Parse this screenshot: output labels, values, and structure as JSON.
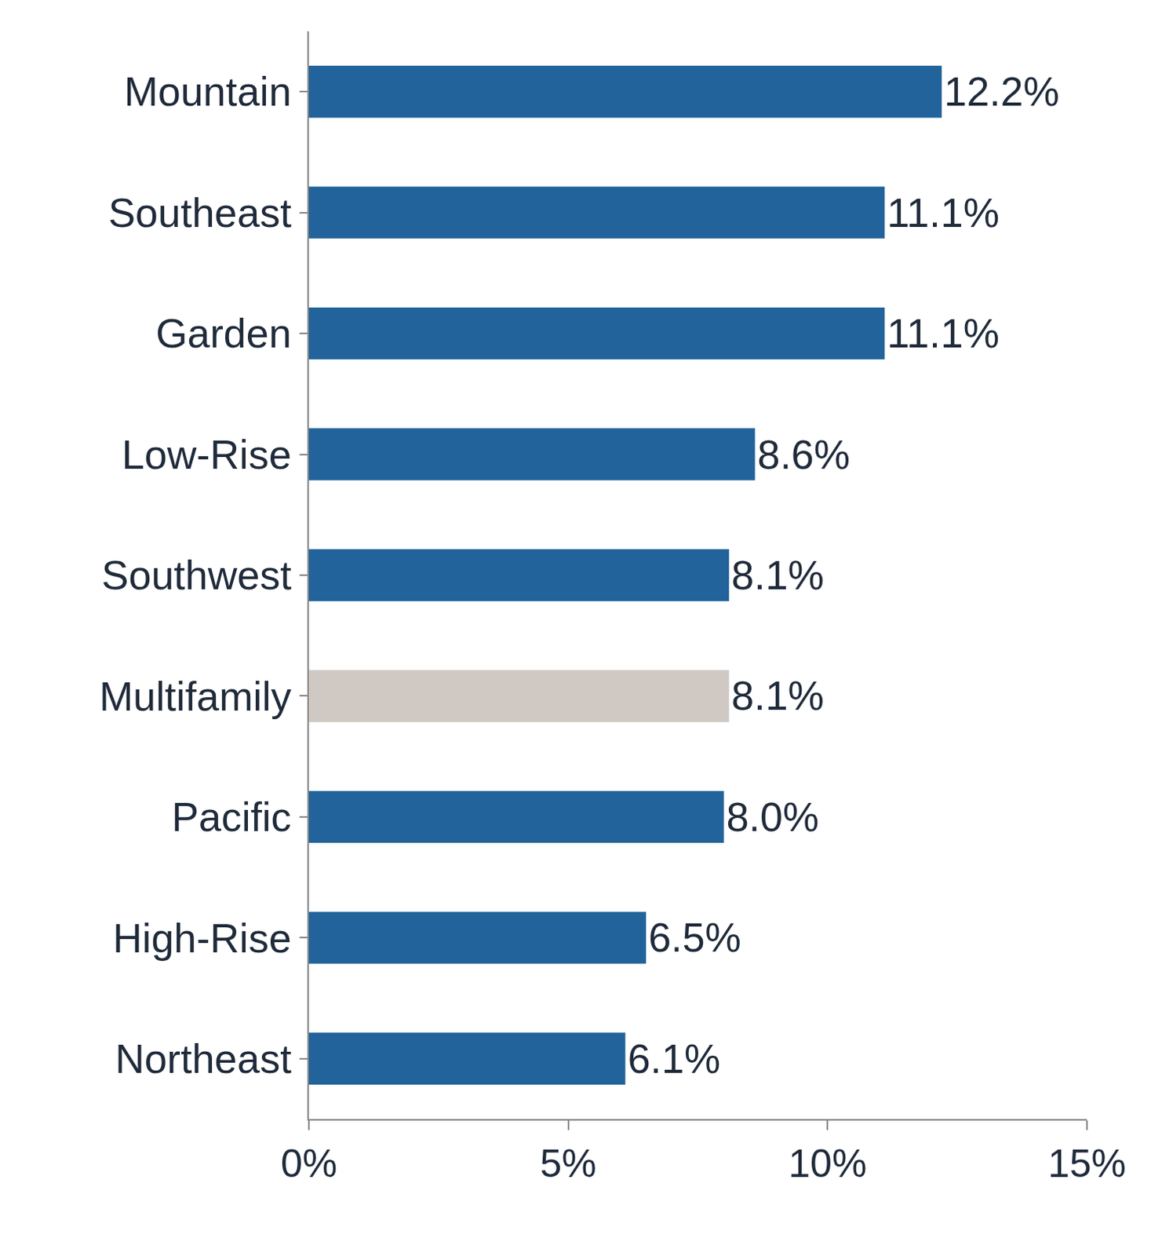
{
  "chart_data": {
    "type": "bar",
    "orientation": "horizontal",
    "categories": [
      "Mountain",
      "Southeast",
      "Garden",
      "Low-Rise",
      "Southwest",
      "Multifamily",
      "Pacific",
      "High-Rise",
      "Northeast"
    ],
    "values": [
      12.2,
      11.1,
      11.1,
      8.6,
      8.1,
      8.1,
      8.0,
      6.5,
      6.1
    ],
    "value_labels": [
      "12.2%",
      "11.1%",
      "11.1%",
      "8.6%",
      "8.1%",
      "8.1%",
      "8.0%",
      "6.5%",
      "6.1%"
    ],
    "colors": [
      "#21639a",
      "#21639a",
      "#21639a",
      "#21639a",
      "#21639a",
      "#cfc8c3",
      "#21639a",
      "#21639a",
      "#21639a"
    ],
    "xlim": [
      0,
      15
    ],
    "xticks": [
      {
        "value": 0,
        "label": "0%"
      },
      {
        "value": 5,
        "label": "5%"
      },
      {
        "value": 10,
        "label": "10%"
      },
      {
        "value": 15,
        "label": "15%"
      }
    ],
    "grid": false,
    "data_labels": true
  }
}
